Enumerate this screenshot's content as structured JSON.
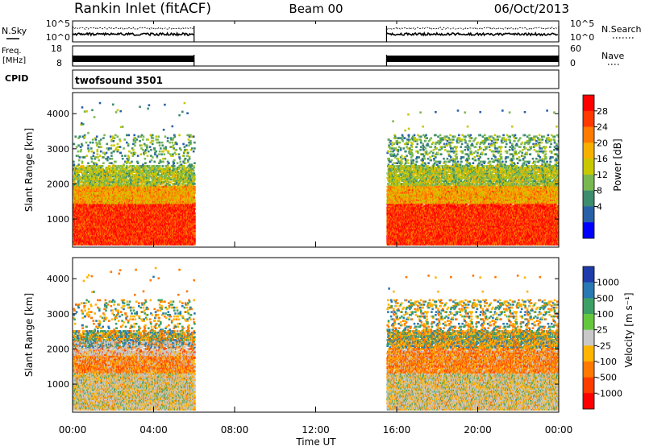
{
  "header": {
    "site": "Rankin Inlet (fitACF)",
    "beam": "Beam 00",
    "date": "06/Oct/2013"
  },
  "strip_panels": {
    "nsky_label": "N.Sky",
    "nsky_ticks": [
      "10^5",
      "10^0"
    ],
    "nsearch_label": "N.Search",
    "nsearch_ticks": [
      "10^5",
      "10^0"
    ],
    "freq_label_line1": "Freq.",
    "freq_label_line2": "[MHz]",
    "freq_ticks": [
      "18",
      "8"
    ],
    "nave_label": "Nave",
    "nave_ticks": [
      "60",
      "0"
    ],
    "cpid_label": "CPID",
    "cpid_value": "twofsound 3501"
  },
  "chart_data": [
    {
      "type": "heatmap",
      "panel": "power",
      "xlabel": "",
      "ylabel": "Slant Range [km]",
      "xlim": [
        0,
        24
      ],
      "ylim": [
        200,
        4600
      ],
      "yticks": [
        "1000",
        "2000",
        "3000",
        "4000"
      ],
      "ytick_values": [
        1000,
        2000,
        3000,
        4000
      ],
      "data_intervals_ut_hours": [
        [
          0.0,
          6.0
        ],
        [
          15.5,
          24.0
        ]
      ],
      "colorbar": {
        "label": "Power [dB]",
        "tick_labels": [
          "28",
          "24",
          "20",
          "16",
          "12",
          "8",
          "4"
        ],
        "colors": [
          "#ff0000",
          "#ff3800",
          "#ff7a00",
          "#f5b000",
          "#c8c800",
          "#78b850",
          "#3c8c6e",
          "#2860a8",
          "#0000ff"
        ]
      }
    },
    {
      "type": "heatmap",
      "panel": "velocity",
      "xlabel": "Time UT",
      "ylabel": "Slant Range [km]",
      "xlim": [
        0,
        24
      ],
      "ylim": [
        200,
        4600
      ],
      "xticks": [
        "00:00",
        "04:00",
        "08:00",
        "12:00",
        "16:00",
        "20:00",
        "00:00"
      ],
      "xtick_values": [
        0,
        4,
        8,
        12,
        16,
        20,
        24
      ],
      "yticks": [
        "1000",
        "2000",
        "3000",
        "4000"
      ],
      "ytick_values": [
        1000,
        2000,
        3000,
        4000
      ],
      "data_intervals_ut_hours": [
        [
          0.0,
          6.0
        ],
        [
          15.5,
          24.0
        ]
      ],
      "colorbar": {
        "label": "Velocity [m s⁻¹]",
        "tick_labels": [
          "1000",
          "500",
          "100",
          "25",
          "-25",
          "-100",
          "-500",
          "-1000"
        ],
        "colors": [
          "#1e3caa",
          "#2878b4",
          "#3ca064",
          "#64c83c",
          "#c8c8c8",
          "#ffb400",
          "#ff7800",
          "#ff3c00",
          "#ff0000"
        ]
      }
    }
  ]
}
